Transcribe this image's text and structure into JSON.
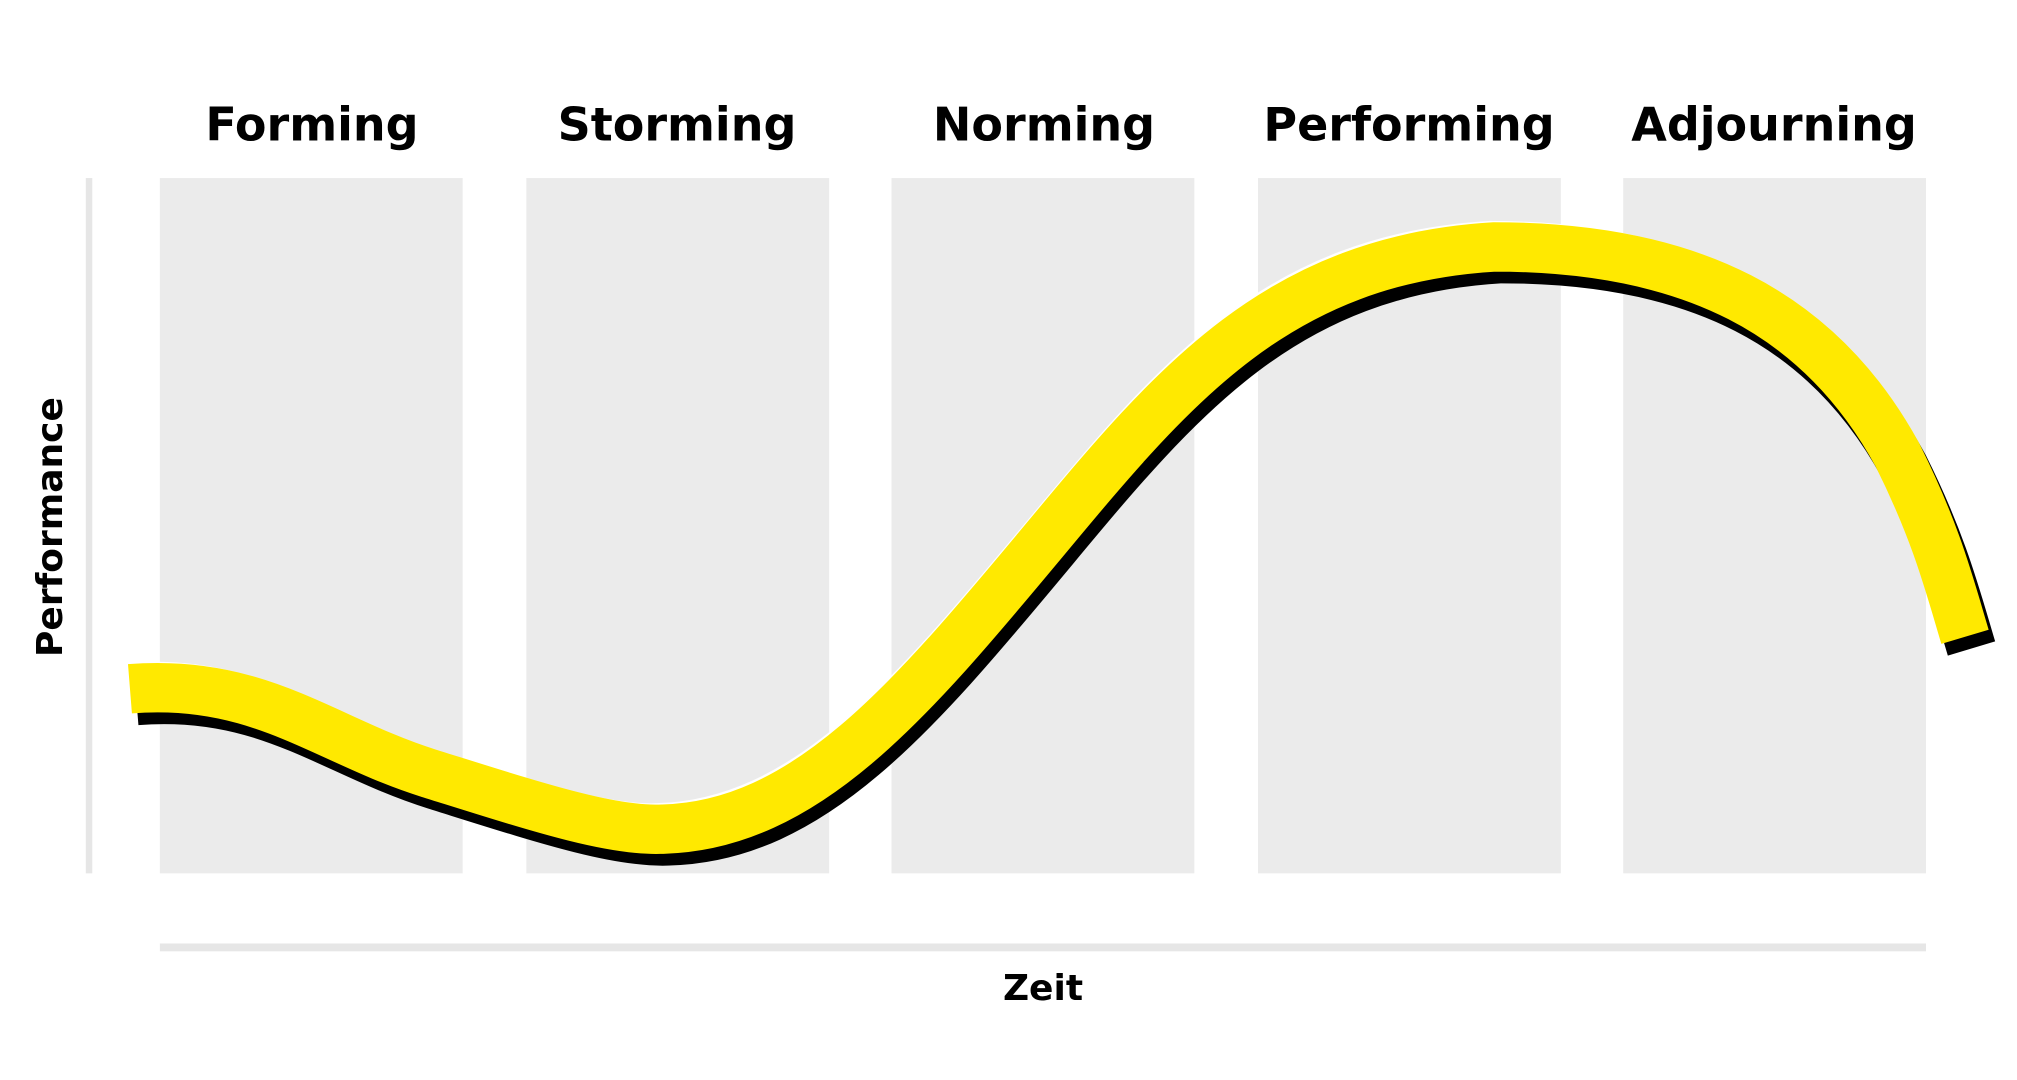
{
  "stages": [
    "Forming",
    "Storming",
    "Norming",
    "Performing",
    "Adjourning"
  ],
  "axes": {
    "y": "Performance",
    "x": "Zeit"
  }
}
